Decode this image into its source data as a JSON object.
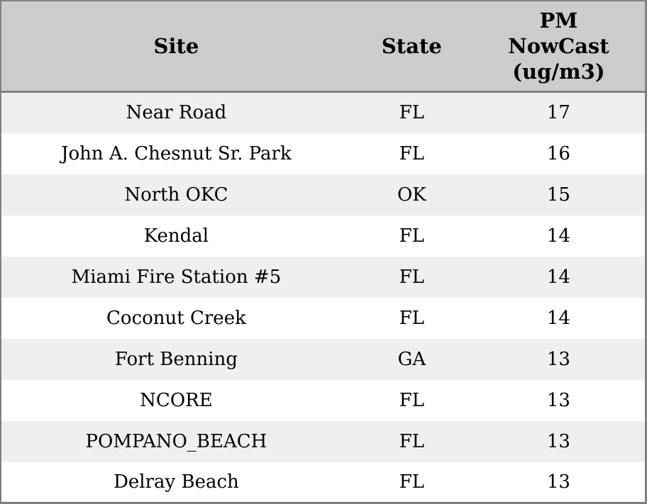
{
  "colors": {
    "header_bg": "#cccccc",
    "border": "#808080",
    "row_alt_bg": "#efefef",
    "row_bg": "#ffffff",
    "text": "#000000"
  },
  "chart_data": {
    "type": "table",
    "columns": [
      "Site",
      "State",
      "PM NowCast (ug/m3)"
    ],
    "rows": [
      [
        "Near Road",
        "FL",
        "17"
      ],
      [
        "John A. Chesnut Sr. Park",
        "FL",
        "16"
      ],
      [
        "North OKC",
        "OK",
        "15"
      ],
      [
        "Kendal",
        "FL",
        "14"
      ],
      [
        "Miami Fire Station #5",
        "FL",
        "14"
      ],
      [
        "Coconut Creek",
        "FL",
        "14"
      ],
      [
        "Fort Benning",
        "GA",
        "13"
      ],
      [
        "NCORE",
        "FL",
        "13"
      ],
      [
        "POMPANO_BEACH",
        "FL",
        "13"
      ],
      [
        "Delray Beach",
        "FL",
        "13"
      ]
    ]
  }
}
